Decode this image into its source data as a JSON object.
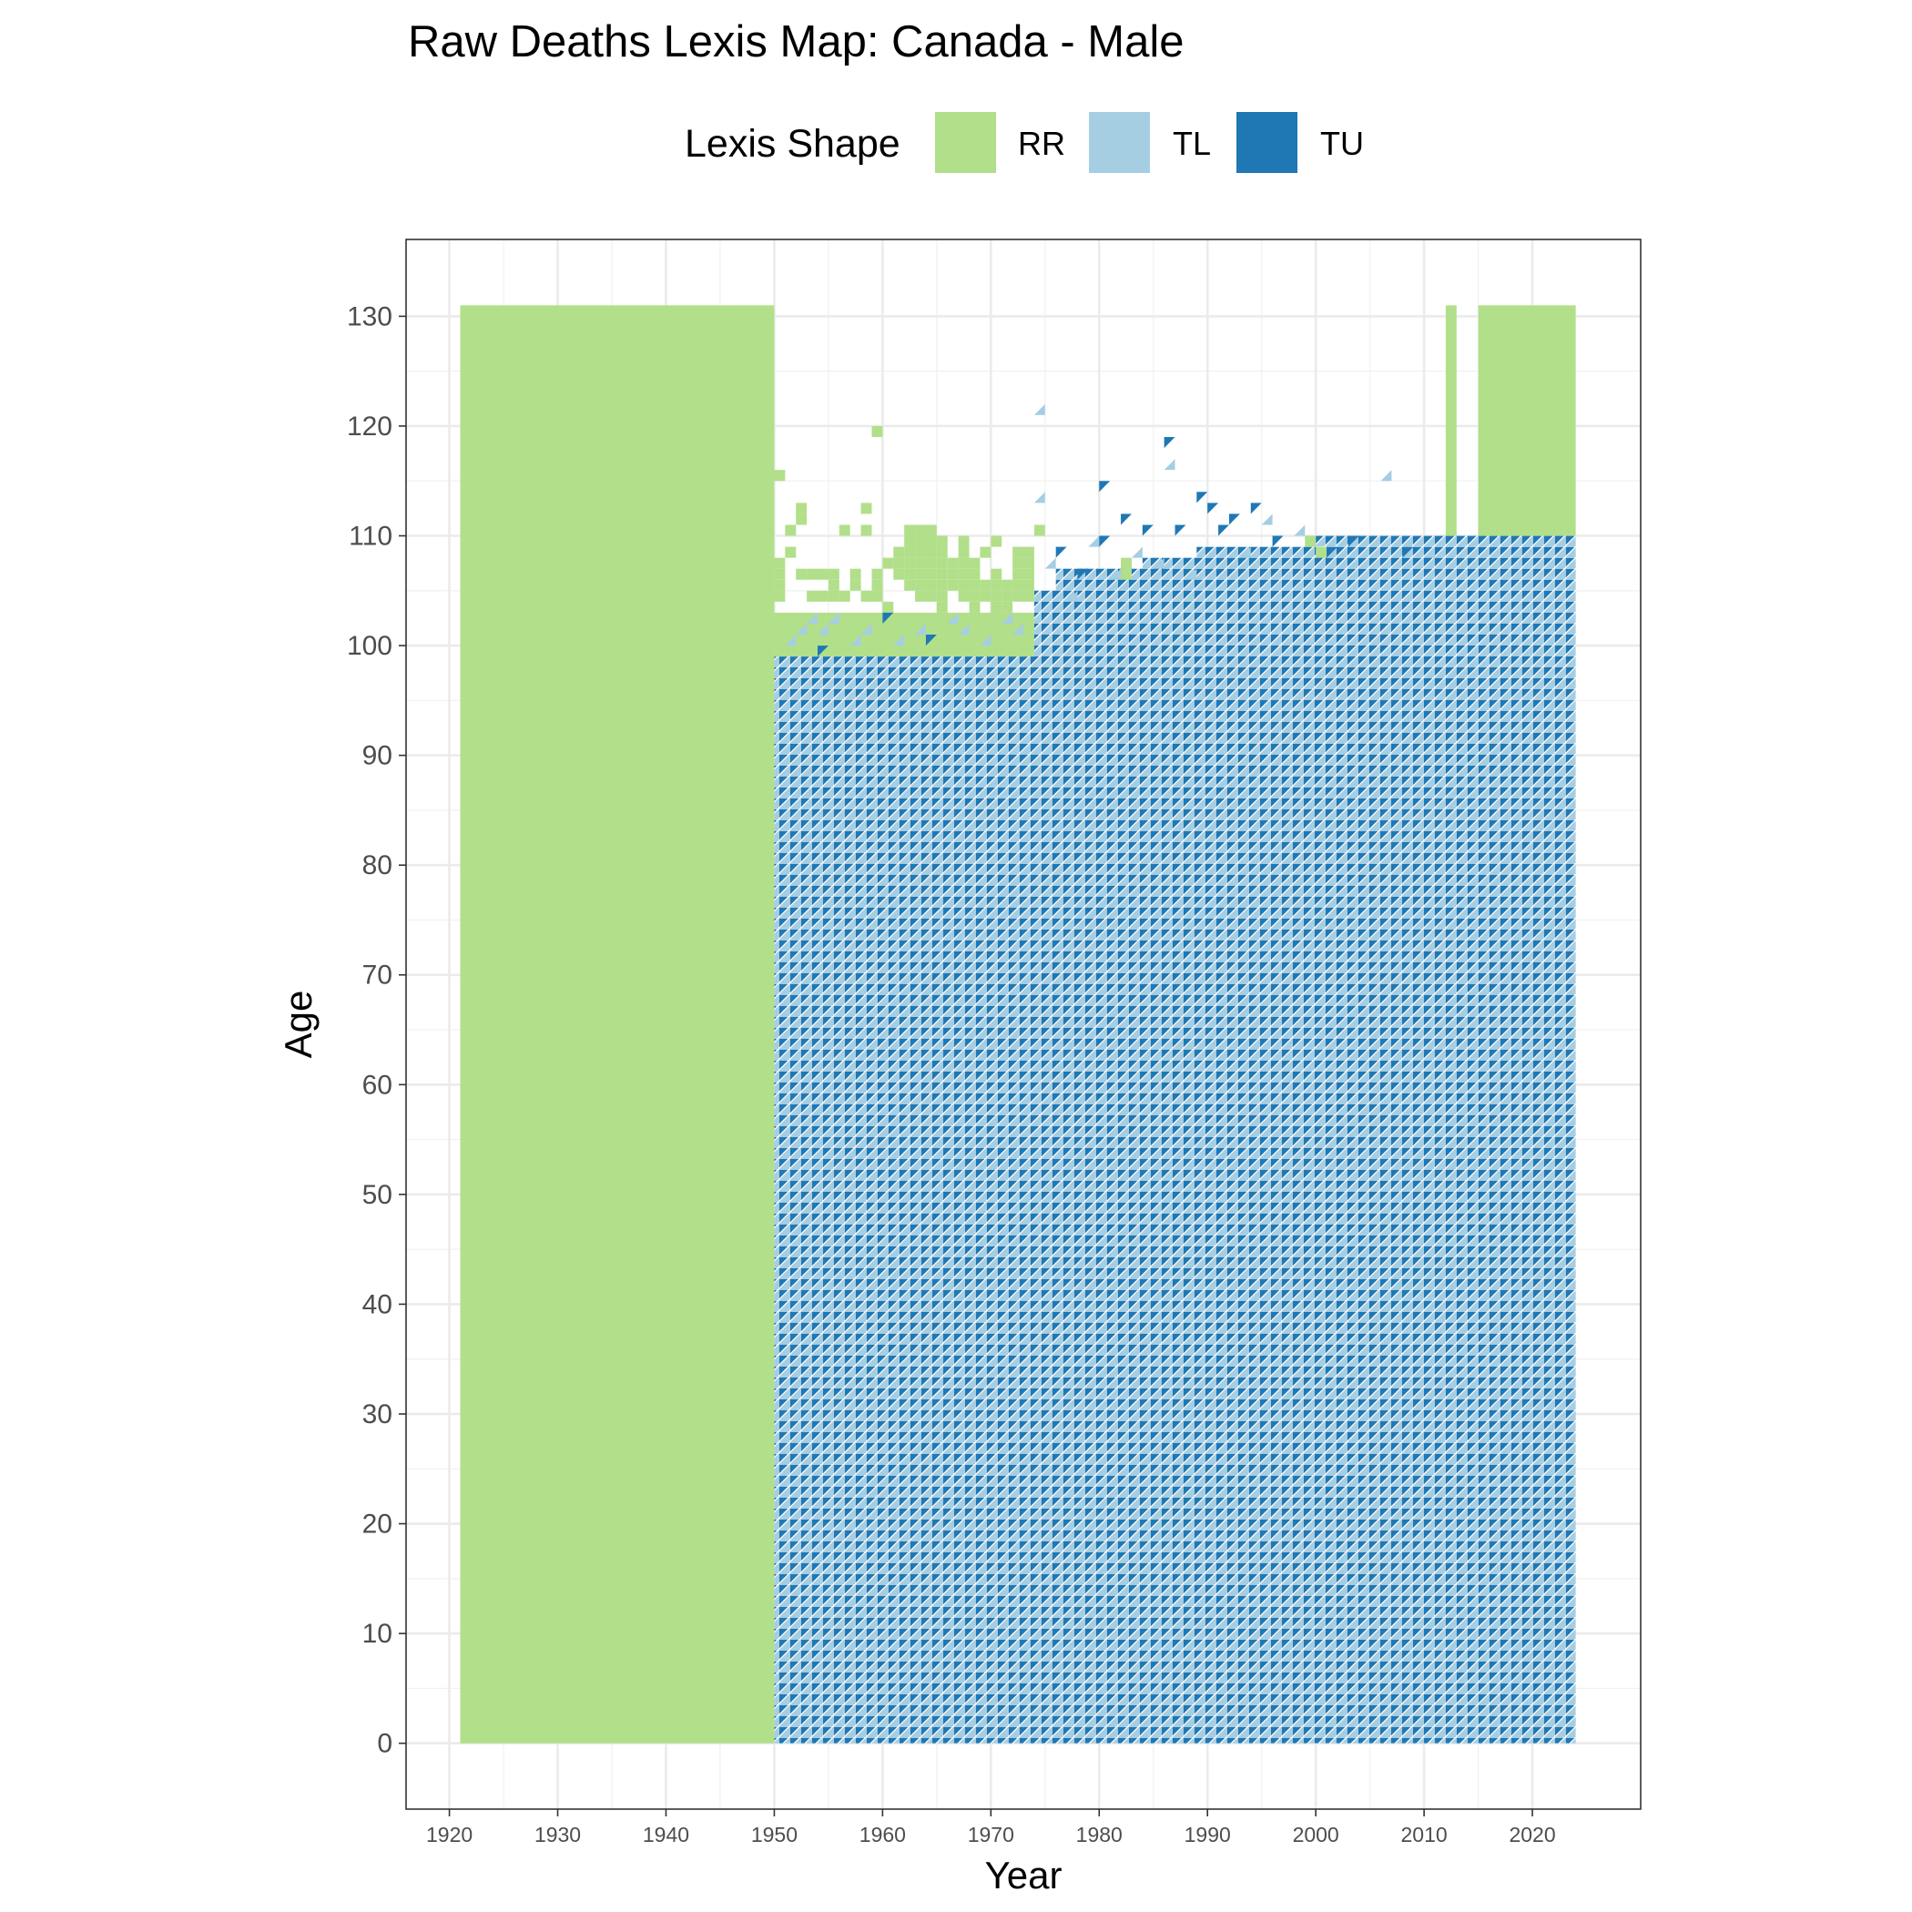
{
  "chart_data": {
    "type": "heatmap",
    "title": "Raw Deaths Lexis Map: Canada - Male",
    "xlabel": "Year",
    "ylabel": "Age",
    "xlim": [
      1916,
      2030
    ],
    "ylim": [
      -6,
      137
    ],
    "x_ticks": [
      1920,
      1930,
      1940,
      1950,
      1960,
      1970,
      1980,
      1990,
      2000,
      2010,
      2020
    ],
    "y_ticks": [
      0,
      10,
      20,
      30,
      40,
      50,
      60,
      70,
      80,
      90,
      100,
      110,
      120,
      130
    ],
    "grid": true,
    "legend": {
      "title": "Lexis Shape",
      "position": "top",
      "entries": [
        {
          "key": "RR",
          "label": "RR",
          "color": "#b2df8a"
        },
        {
          "key": "TL",
          "label": "TL",
          "color": "#a6cee3"
        },
        {
          "key": "TU",
          "label": "TU",
          "color": "#1f78b4"
        }
      ]
    },
    "rr_blocks": [
      {
        "x": [
          1921,
          1950
        ],
        "y": [
          0,
          131
        ]
      },
      {
        "x": [
          2012,
          2013
        ],
        "y": [
          110,
          131
        ]
      },
      {
        "x": [
          2015,
          2024
        ],
        "y": [
          110,
          131
        ]
      },
      {
        "x": [
          1950,
          1974
        ],
        "y": [
          99,
          103
        ]
      }
    ],
    "triangle_region": {
      "x": [
        1950,
        2024
      ],
      "y_min": 0,
      "upper_age_by_year": [
        {
          "x": [
            1950,
            1974
          ],
          "y_max": 99
        },
        {
          "x": [
            1974,
            1976
          ],
          "y_max": 105
        },
        {
          "x": [
            1976,
            1984
          ],
          "y_max": 107
        },
        {
          "x": [
            1984,
            1989
          ],
          "y_max": 108
        },
        {
          "x": [
            1989,
            2000
          ],
          "y_max": 109
        },
        {
          "x": [
            2000,
            2024
          ],
          "y_max": 110
        }
      ]
    },
    "rr_scatter_cells": [
      [
        1950,
        104
      ],
      [
        1950,
        105
      ],
      [
        1950,
        106
      ],
      [
        1950,
        107
      ],
      [
        1950,
        115
      ],
      [
        1951,
        108
      ],
      [
        1951,
        110
      ],
      [
        1952,
        106
      ],
      [
        1952,
        111
      ],
      [
        1952,
        112
      ],
      [
        1953,
        104
      ],
      [
        1953,
        106
      ],
      [
        1954,
        104
      ],
      [
        1954,
        106
      ],
      [
        1955,
        104
      ],
      [
        1955,
        105
      ],
      [
        1955,
        106
      ],
      [
        1956,
        104
      ],
      [
        1956,
        110
      ],
      [
        1957,
        105
      ],
      [
        1957,
        106
      ],
      [
        1958,
        104
      ],
      [
        1958,
        110
      ],
      [
        1958,
        112
      ],
      [
        1959,
        104
      ],
      [
        1959,
        105
      ],
      [
        1959,
        106
      ],
      [
        1959,
        119
      ],
      [
        1960,
        103
      ],
      [
        1960,
        107
      ],
      [
        1961,
        106
      ],
      [
        1961,
        107
      ],
      [
        1961,
        108
      ],
      [
        1962,
        105
      ],
      [
        1962,
        106
      ],
      [
        1962,
        107
      ],
      [
        1962,
        108
      ],
      [
        1962,
        109
      ],
      [
        1962,
        110
      ],
      [
        1963,
        104
      ],
      [
        1963,
        105
      ],
      [
        1963,
        106
      ],
      [
        1963,
        107
      ],
      [
        1963,
        108
      ],
      [
        1963,
        109
      ],
      [
        1963,
        110
      ],
      [
        1964,
        104
      ],
      [
        1964,
        105
      ],
      [
        1964,
        106
      ],
      [
        1964,
        107
      ],
      [
        1964,
        108
      ],
      [
        1964,
        109
      ],
      [
        1964,
        110
      ],
      [
        1965,
        103
      ],
      [
        1965,
        104
      ],
      [
        1965,
        105
      ],
      [
        1965,
        106
      ],
      [
        1965,
        107
      ],
      [
        1965,
        108
      ],
      [
        1965,
        109
      ],
      [
        1966,
        105
      ],
      [
        1966,
        106
      ],
      [
        1966,
        107
      ],
      [
        1967,
        104
      ],
      [
        1967,
        105
      ],
      [
        1967,
        106
      ],
      [
        1967,
        107
      ],
      [
        1967,
        108
      ],
      [
        1967,
        109
      ],
      [
        1968,
        103
      ],
      [
        1968,
        104
      ],
      [
        1968,
        105
      ],
      [
        1968,
        106
      ],
      [
        1968,
        107
      ],
      [
        1969,
        104
      ],
      [
        1969,
        105
      ],
      [
        1969,
        108
      ],
      [
        1970,
        103
      ],
      [
        1970,
        104
      ],
      [
        1970,
        105
      ],
      [
        1970,
        106
      ],
      [
        1970,
        109
      ],
      [
        1971,
        103
      ],
      [
        1971,
        104
      ],
      [
        1971,
        105
      ],
      [
        1972,
        104
      ],
      [
        1972,
        105
      ],
      [
        1972,
        106
      ],
      [
        1972,
        107
      ],
      [
        1972,
        108
      ],
      [
        1973,
        104
      ],
      [
        1973,
        105
      ],
      [
        1973,
        106
      ],
      [
        1973,
        107
      ],
      [
        1973,
        108
      ],
      [
        1974,
        110
      ],
      [
        1982,
        106
      ],
      [
        1982,
        107
      ],
      [
        1999,
        109
      ],
      [
        2000,
        108
      ]
    ],
    "tl_scatter_cells": [
      [
        1951,
        100
      ],
      [
        1952,
        101
      ],
      [
        1953,
        102
      ],
      [
        1954,
        101
      ],
      [
        1955,
        102
      ],
      [
        1957,
        100
      ],
      [
        1958,
        101
      ],
      [
        1961,
        100
      ],
      [
        1963,
        101
      ],
      [
        1966,
        102
      ],
      [
        1967,
        101
      ],
      [
        1969,
        100
      ],
      [
        1971,
        102
      ],
      [
        1972,
        101
      ],
      [
        1974,
        113
      ],
      [
        1974,
        121
      ],
      [
        1975,
        107
      ],
      [
        1977,
        104
      ],
      [
        1979,
        109
      ],
      [
        1981,
        106
      ],
      [
        1983,
        108
      ],
      [
        1985,
        107
      ],
      [
        1986,
        116
      ],
      [
        1988,
        106
      ],
      [
        1993,
        108
      ],
      [
        1995,
        111
      ],
      [
        1998,
        110
      ],
      [
        2006,
        115
      ],
      [
        2010,
        108
      ],
      [
        2018,
        108
      ]
    ],
    "tu_scatter_cells": [
      [
        1954,
        99
      ],
      [
        1960,
        102
      ],
      [
        1964,
        100
      ],
      [
        1976,
        108
      ],
      [
        1978,
        106
      ],
      [
        1980,
        109
      ],
      [
        1980,
        114
      ],
      [
        1982,
        111
      ],
      [
        1984,
        110
      ],
      [
        1986,
        118
      ],
      [
        1987,
        110
      ],
      [
        1989,
        113
      ],
      [
        1990,
        112
      ],
      [
        1991,
        110
      ],
      [
        1992,
        111
      ],
      [
        1994,
        112
      ],
      [
        1996,
        109
      ],
      [
        2001,
        108
      ],
      [
        2003,
        109
      ],
      [
        2008,
        108
      ]
    ]
  }
}
